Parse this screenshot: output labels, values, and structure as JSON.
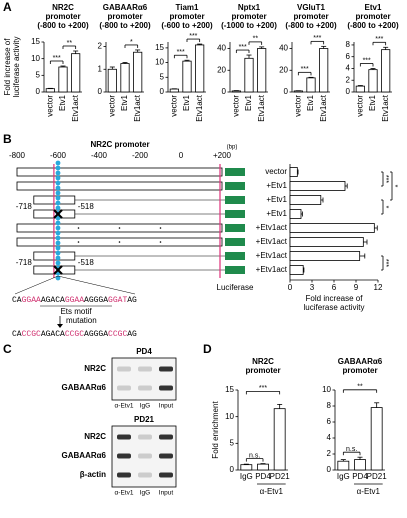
{
  "panel_labels": [
    "A",
    "B",
    "C",
    "D"
  ],
  "chart_data": [
    {
      "type": "bar",
      "title": [
        "NR2C",
        "promoter"
      ],
      "subtitle": "(-800 to +200)",
      "ylabel": [
        "Fold increase of",
        "luciferase activity"
      ],
      "categories": [
        "vector",
        "Etv1",
        "Etv1act"
      ],
      "values": [
        1,
        7.5,
        11.5
      ],
      "errors": [
        0.1,
        0.3,
        0.8
      ],
      "ylim": [
        0,
        15
      ],
      "yticks": [
        0,
        5,
        10,
        15
      ],
      "significance": [
        "***",
        "**"
      ]
    },
    {
      "type": "bar",
      "title": [
        "GABAARα6",
        "promoter"
      ],
      "subtitle": "(-800 to +200)",
      "categories": [
        "vector",
        "Etv1",
        "Etv1act"
      ],
      "values": [
        1,
        1.25,
        1.75
      ],
      "errors": [
        0.1,
        0.05,
        0.1
      ],
      "ylim": [
        0,
        2.2
      ],
      "yticks": [
        0,
        1,
        2
      ],
      "significance": [
        "*"
      ]
    },
    {
      "type": "bar",
      "title": [
        "Tiam1",
        "promoter"
      ],
      "subtitle": "(-600 to +200)",
      "categories": [
        "vector",
        "Etv1",
        "Etv1act"
      ],
      "values": [
        1,
        10.5,
        16
      ],
      "errors": [
        0.1,
        0.3,
        0.3
      ],
      "ylim": [
        0,
        17
      ],
      "yticks": [
        0,
        5,
        10,
        15
      ],
      "significance": [
        "***",
        "***"
      ]
    },
    {
      "type": "bar",
      "title": [
        "Nptx1",
        "promoter"
      ],
      "subtitle": "(-1000 to +200)",
      "categories": [
        "vector",
        "Etv1",
        "Etv1act"
      ],
      "values": [
        1,
        31,
        40
      ],
      "errors": [
        0.3,
        3,
        1.5
      ],
      "ylim": [
        0,
        46
      ],
      "yticks": [
        0,
        20,
        40
      ],
      "significance": [
        "***",
        "**"
      ]
    },
    {
      "type": "bar",
      "title": [
        "VGluT1",
        "promoter"
      ],
      "subtitle": "(-800 to +200)",
      "categories": [
        "vector",
        "Etv1",
        "Etv1act"
      ],
      "values": [
        1,
        13,
        40
      ],
      "errors": [
        0.2,
        0.5,
        2
      ],
      "ylim": [
        0,
        46
      ],
      "yticks": [
        0,
        20,
        40
      ],
      "significance": [
        "***",
        "***"
      ]
    },
    {
      "type": "bar",
      "title": [
        "Etv1",
        "promoter"
      ],
      "subtitle": "(-800 to +200)",
      "categories": [
        "vector",
        "Etv1",
        "Etv1act"
      ],
      "values": [
        1,
        3.8,
        7.2
      ],
      "errors": [
        0.1,
        0.2,
        0.4
      ],
      "ylim": [
        0,
        8.5
      ],
      "yticks": [
        0,
        2,
        4,
        6,
        8
      ],
      "significance": [
        "***",
        "***"
      ]
    },
    {
      "type": "hbar",
      "categories": [
        "vector",
        "+Etv1",
        "+Etv1",
        "+Etv1",
        "+Etv1act",
        "+Etv1act",
        "+Etv1act",
        "+Etv1act"
      ],
      "values": [
        1,
        7.5,
        4.2,
        1.5,
        11.5,
        10,
        9.5,
        1.8
      ],
      "errors": [
        0.1,
        0.3,
        0.3,
        0.2,
        0.4,
        0.5,
        0.7,
        0.1
      ],
      "xlim": [
        0,
        12
      ],
      "xticks": [
        0,
        3,
        6,
        9,
        12
      ],
      "xlabel": [
        "Fold increase of",
        "luciferase activity"
      ],
      "significance": [
        "***",
        "*",
        "*",
        "***"
      ]
    },
    {
      "type": "bar",
      "title": [
        "NR2C",
        "promoter"
      ],
      "ylabel": [
        "Fold enrichment"
      ],
      "categories": [
        "IgG",
        "PD4",
        "PD21"
      ],
      "values": [
        1,
        1.1,
        11.5
      ],
      "errors": [
        0.1,
        0.1,
        0.8
      ],
      "ylim": [
        0,
        15
      ],
      "yticks": [
        0,
        5,
        10,
        15
      ],
      "significance": [
        "n.s.",
        "***"
      ],
      "group_label": "α-Etv1"
    },
    {
      "type": "bar",
      "title": [
        "GABAARα6",
        "promoter"
      ],
      "categories": [
        "IgG",
        "PD4",
        "PD21"
      ],
      "values": [
        1.1,
        1.3,
        7.8
      ],
      "errors": [
        0.2,
        0.3,
        0.6
      ],
      "ylim": [
        0,
        10
      ],
      "yticks": [
        0,
        2,
        4,
        6,
        8,
        10
      ],
      "significance": [
        "n.s.",
        "**"
      ],
      "group_label": "α-Etv1"
    }
  ],
  "diagram": {
    "title": "NR2C promoter",
    "axis_labels": [
      "-800",
      "-600",
      "-400",
      "-200",
      "0",
      "+200"
    ],
    "unit": "(bp)",
    "deletion_labels": [
      "-718",
      "-518",
      "-718",
      "-518"
    ],
    "luciferase": "Luciferase",
    "sequence": [
      "CA",
      "GGAA",
      "AGACA",
      "GGAA",
      "AGGGA",
      "GGAT",
      "AG"
    ],
    "motif_label": "Ets motif",
    "mutation_label": "mutation",
    "mutated_sequence": [
      "CA",
      "CCGC",
      "AGACA",
      "CCGC",
      "AGGGA",
      "CCGC",
      "AG"
    ]
  },
  "gels": [
    {
      "title": "PD4",
      "rows": [
        "NR2C",
        "GABAARα6"
      ],
      "lanes": [
        "α-Etv1",
        "IgG",
        "Input"
      ]
    },
    {
      "title": "PD21",
      "rows": [
        "NR2C",
        "GABAARα6",
        "β-actin"
      ],
      "lanes": [
        "α-Etv1",
        "IgG",
        "Input"
      ]
    }
  ]
}
